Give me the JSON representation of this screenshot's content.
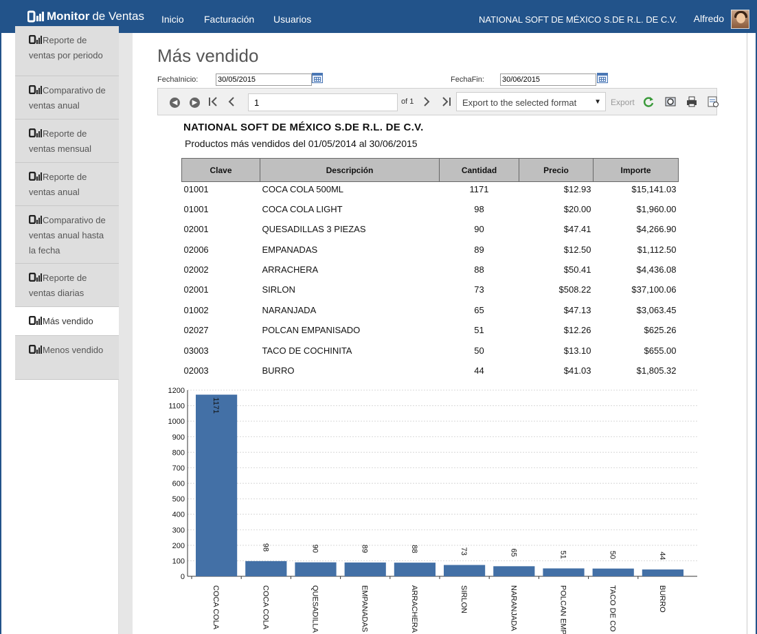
{
  "navbar": {
    "brand_bold": "Monitor",
    "brand_light": "de Ventas",
    "links": [
      "Inicio",
      "Facturación",
      "Usuarios"
    ],
    "company": "NATIONAL SOFT DE MÉXICO S.DE R.L. DE C.V.",
    "user": "Alfredo"
  },
  "sidebar": {
    "items": [
      {
        "label": "Reporte de ventas por periodo"
      },
      {
        "label": "Comparativo de ventas anual"
      },
      {
        "label": "Reporte de ventas mensual"
      },
      {
        "label": "Reporte de ventas anual"
      },
      {
        "label": "Comparativo de ventas anual hasta la fecha"
      },
      {
        "label": "Reporte de ventas diarias"
      },
      {
        "label": "Más vendido"
      },
      {
        "label": "Menos vendido"
      }
    ]
  },
  "page": {
    "title": "Más vendido",
    "fecha_inicio_label": "FechaInicio:",
    "fecha_inicio_value": "30/05/2015",
    "fecha_fin_label": "FechaFin:",
    "fecha_fin_value": "30/06/2015"
  },
  "toolbar": {
    "page_value": "1",
    "of_label": "of 1",
    "export_select": "Export to the selected format",
    "export_link": "Export"
  },
  "report": {
    "company": "NATIONAL SOFT DE MÉXICO S.DE R.L. DE C.V.",
    "subtitle": "Productos más vendidos del 01/05/2014 al 30/06/2015",
    "columns": [
      "Clave",
      "Descripción",
      "Cantidad",
      "Precio",
      "Importe"
    ],
    "rows": [
      {
        "clave": "01001",
        "descripcion": "COCA COLA 500ML",
        "cantidad": "1171",
        "precio": "$12.93",
        "importe": "$15,141.03"
      },
      {
        "clave": "01001",
        "descripcion": "COCA COLA LIGHT",
        "cantidad": "98",
        "precio": "$20.00",
        "importe": "$1,960.00"
      },
      {
        "clave": "02001",
        "descripcion": "QUESADILLAS 3 PIEZAS",
        "cantidad": "90",
        "precio": "$47.41",
        "importe": "$4,266.90"
      },
      {
        "clave": "02006",
        "descripcion": "EMPANADAS",
        "cantidad": "89",
        "precio": "$12.50",
        "importe": "$1,112.50"
      },
      {
        "clave": "02002",
        "descripcion": "ARRACHERA",
        "cantidad": "88",
        "precio": "$50.41",
        "importe": "$4,436.08"
      },
      {
        "clave": "02001",
        "descripcion": "SIRLON",
        "cantidad": "73",
        "precio": "$508.22",
        "importe": "$37,100.06"
      },
      {
        "clave": "01002",
        "descripcion": "NARANJADA",
        "cantidad": "65",
        "precio": "$47.13",
        "importe": "$3,063.45"
      },
      {
        "clave": "02027",
        "descripcion": "POLCAN EMPANISADO",
        "cantidad": "51",
        "precio": "$12.26",
        "importe": "$625.26"
      },
      {
        "clave": "03003",
        "descripcion": "TACO DE COCHINITA",
        "cantidad": "50",
        "precio": "$13.10",
        "importe": "$655.00"
      },
      {
        "clave": "02003",
        "descripcion": "BURRO",
        "cantidad": "44",
        "precio": "$41.03",
        "importe": "$1,805.32"
      }
    ]
  },
  "chart_data": {
    "type": "bar",
    "categories": [
      "COCA COLA",
      "COCA COLA",
      "QUESADILLA",
      "EMPANADAS",
      "ARRACHERA",
      "SIRLON",
      "NARANJADA",
      "POLCAN EMP",
      "TACO DE CO",
      "BURRO"
    ],
    "values": [
      1171,
      98,
      90,
      89,
      88,
      73,
      65,
      51,
      50,
      44
    ],
    "ylim": [
      0,
      1200
    ],
    "yticks": [
      0,
      100,
      200,
      300,
      400,
      500,
      600,
      700,
      800,
      900,
      1000,
      1100,
      1200
    ],
    "bar_color": "#4370a6",
    "grid": true,
    "legend": "none"
  },
  "colors": {
    "navbar": "#22538a",
    "bar": "#4370a6"
  }
}
